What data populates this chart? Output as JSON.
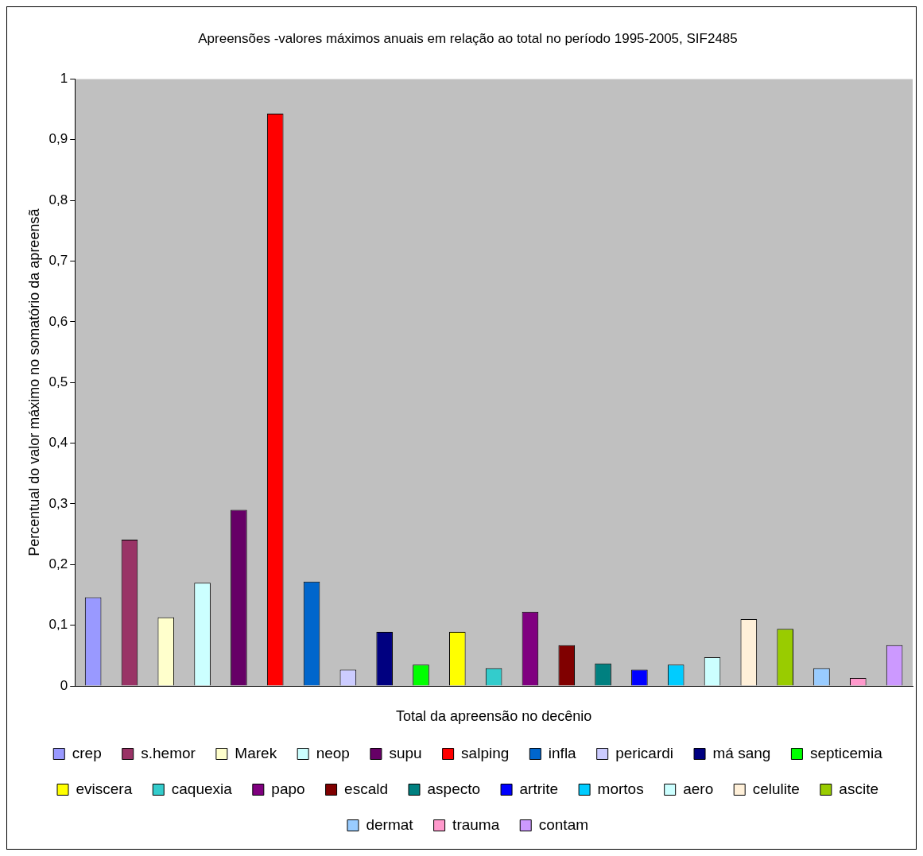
{
  "chart_data": {
    "type": "bar",
    "title": "Apreensões -valores máximos anuais em relação ao total no período 1995-2005, SIF2485",
    "xlabel": "Total da apreensão no decênio",
    "ylabel": "Percentual do valor máximo no somatório da apreensã",
    "categories": [
      null,
      null,
      null,
      null,
      null,
      null,
      null,
      null,
      null,
      null,
      null,
      null,
      null,
      null,
      null,
      null,
      null,
      null,
      null,
      null,
      null,
      null,
      null
    ],
    "ylim": [
      0,
      1
    ],
    "yticks": [
      0,
      {
        "value": 0.1,
        "label": "0,1"
      },
      {
        "value": 0.2,
        "label": "0,2"
      },
      {
        "value": 0.3,
        "label": "0,3"
      },
      {
        "value": 0.4,
        "label": "0,4"
      },
      {
        "value": 0.5,
        "label": "0,5"
      },
      {
        "value": 0.6,
        "label": "0,6"
      },
      {
        "value": 0.7,
        "label": "0,7"
      },
      {
        "value": 0.8,
        "label": "0,8"
      },
      {
        "value": 0.9,
        "label": "0,9"
      },
      1
    ],
    "grid": false,
    "legend": "bottom",
    "series": [
      {
        "name": "crep",
        "color": "#9999ff",
        "values": [
          0.146,
          null,
          null,
          null,
          null,
          null,
          null,
          null,
          null,
          null,
          null,
          null,
          null,
          null,
          null,
          null,
          null,
          null,
          null,
          null,
          null,
          null,
          null
        ]
      },
      {
        "name": "s.hemor",
        "color": "#993366",
        "values": [
          null,
          0.241,
          null,
          null,
          null,
          null,
          null,
          null,
          null,
          null,
          null,
          null,
          null,
          null,
          null,
          null,
          null,
          null,
          null,
          null,
          null,
          null,
          null
        ]
      },
      {
        "name": "Marek",
        "color": "#ffffcc",
        "values": [
          null,
          null,
          0.113,
          null,
          null,
          null,
          null,
          null,
          null,
          null,
          null,
          null,
          null,
          null,
          null,
          null,
          null,
          null,
          null,
          null,
          null,
          null,
          null
        ]
      },
      {
        "name": "neop",
        "color": "#ccffff",
        "values": [
          null,
          null,
          null,
          0.17,
          null,
          null,
          null,
          null,
          null,
          null,
          null,
          null,
          null,
          null,
          null,
          null,
          null,
          null,
          null,
          null,
          null,
          null,
          null
        ]
      },
      {
        "name": "supu",
        "color": "#660066",
        "values": [
          null,
          null,
          null,
          null,
          0.29,
          null,
          null,
          null,
          null,
          null,
          null,
          null,
          null,
          null,
          null,
          null,
          null,
          null,
          null,
          null,
          null,
          null,
          null
        ]
      },
      {
        "name": "salping",
        "color": "#ff0000",
        "values": [
          null,
          null,
          null,
          null,
          null,
          0.943,
          null,
          null,
          null,
          null,
          null,
          null,
          null,
          null,
          null,
          null,
          null,
          null,
          null,
          null,
          null,
          null,
          null
        ]
      },
      {
        "name": "infla",
        "color": "#0066cc",
        "values": [
          null,
          null,
          null,
          null,
          null,
          null,
          0.172,
          null,
          null,
          null,
          null,
          null,
          null,
          null,
          null,
          null,
          null,
          null,
          null,
          null,
          null,
          null,
          null
        ]
      },
      {
        "name": "pericardi",
        "color": "#ccccff",
        "values": [
          null,
          null,
          null,
          null,
          null,
          null,
          null,
          0.027,
          null,
          null,
          null,
          null,
          null,
          null,
          null,
          null,
          null,
          null,
          null,
          null,
          null,
          null,
          null
        ]
      },
      {
        "name": "má sang",
        "color": "#000080",
        "values": [
          null,
          null,
          null,
          null,
          null,
          null,
          null,
          null,
          0.089,
          null,
          null,
          null,
          null,
          null,
          null,
          null,
          null,
          null,
          null,
          null,
          null,
          null,
          null
        ]
      },
      {
        "name": "septicemia",
        "color": "#00ff00",
        "values": [
          null,
          null,
          null,
          null,
          null,
          null,
          null,
          null,
          null,
          0.035,
          null,
          null,
          null,
          null,
          null,
          null,
          null,
          null,
          null,
          null,
          null,
          null,
          null
        ]
      },
      {
        "name": "eviscera",
        "color": "#ffff00",
        "values": [
          null,
          null,
          null,
          null,
          null,
          null,
          null,
          null,
          null,
          null,
          0.089,
          null,
          null,
          null,
          null,
          null,
          null,
          null,
          null,
          null,
          null,
          null,
          null
        ]
      },
      {
        "name": "caquexia",
        "color": "#33cccc",
        "values": [
          null,
          null,
          null,
          null,
          null,
          null,
          null,
          null,
          null,
          null,
          null,
          0.029,
          null,
          null,
          null,
          null,
          null,
          null,
          null,
          null,
          null,
          null,
          null
        ]
      },
      {
        "name": "papo",
        "color": "#800080",
        "values": [
          null,
          null,
          null,
          null,
          null,
          null,
          null,
          null,
          null,
          null,
          null,
          null,
          0.122,
          null,
          null,
          null,
          null,
          null,
          null,
          null,
          null,
          null,
          null
        ]
      },
      {
        "name": "escald",
        "color": "#800000",
        "values": [
          null,
          null,
          null,
          null,
          null,
          null,
          null,
          null,
          null,
          null,
          null,
          null,
          null,
          0.067,
          null,
          null,
          null,
          null,
          null,
          null,
          null,
          null,
          null
        ]
      },
      {
        "name": "aspecto",
        "color": "#008080",
        "values": [
          null,
          null,
          null,
          null,
          null,
          null,
          null,
          null,
          null,
          null,
          null,
          null,
          null,
          null,
          0.037,
          null,
          null,
          null,
          null,
          null,
          null,
          null,
          null
        ]
      },
      {
        "name": "artrite",
        "color": "#0000ff",
        "values": [
          null,
          null,
          null,
          null,
          null,
          null,
          null,
          null,
          null,
          null,
          null,
          null,
          null,
          null,
          null,
          0.027,
          null,
          null,
          null,
          null,
          null,
          null,
          null
        ]
      },
      {
        "name": "mortos",
        "color": "#00ccff",
        "values": [
          null,
          null,
          null,
          null,
          null,
          null,
          null,
          null,
          null,
          null,
          null,
          null,
          null,
          null,
          null,
          null,
          0.035,
          null,
          null,
          null,
          null,
          null,
          null
        ]
      },
      {
        "name": "aero",
        "color": "#ccffff",
        "values": [
          null,
          null,
          null,
          null,
          null,
          null,
          null,
          null,
          null,
          null,
          null,
          null,
          null,
          null,
          null,
          null,
          null,
          0.047,
          null,
          null,
          null,
          null,
          null
        ]
      },
      {
        "name": "celulite",
        "color": "#fff0d9",
        "values": [
          null,
          null,
          null,
          null,
          null,
          null,
          null,
          null,
          null,
          null,
          null,
          null,
          null,
          null,
          null,
          null,
          null,
          null,
          0.11,
          null,
          null,
          null,
          null
        ]
      },
      {
        "name": "ascite",
        "color": "#99cc00",
        "values": [
          null,
          null,
          null,
          null,
          null,
          null,
          null,
          null,
          null,
          null,
          null,
          null,
          null,
          null,
          null,
          null,
          null,
          null,
          null,
          0.094,
          null,
          null,
          null
        ]
      },
      {
        "name": "dermat",
        "color": "#99ccff",
        "values": [
          null,
          null,
          null,
          null,
          null,
          null,
          null,
          null,
          null,
          null,
          null,
          null,
          null,
          null,
          null,
          null,
          null,
          null,
          null,
          null,
          0.029,
          null,
          null
        ]
      },
      {
        "name": "trauma",
        "color": "#ff99cc",
        "values": [
          null,
          null,
          null,
          null,
          null,
          null,
          null,
          null,
          null,
          null,
          null,
          null,
          null,
          null,
          null,
          null,
          null,
          null,
          null,
          null,
          null,
          0.013,
          null
        ]
      },
      {
        "name": "contam",
        "color": "#cc99ff",
        "values": [
          null,
          null,
          null,
          null,
          null,
          null,
          null,
          null,
          null,
          null,
          null,
          null,
          null,
          null,
          null,
          null,
          null,
          null,
          null,
          null,
          null,
          null,
          0.067
        ]
      }
    ]
  }
}
